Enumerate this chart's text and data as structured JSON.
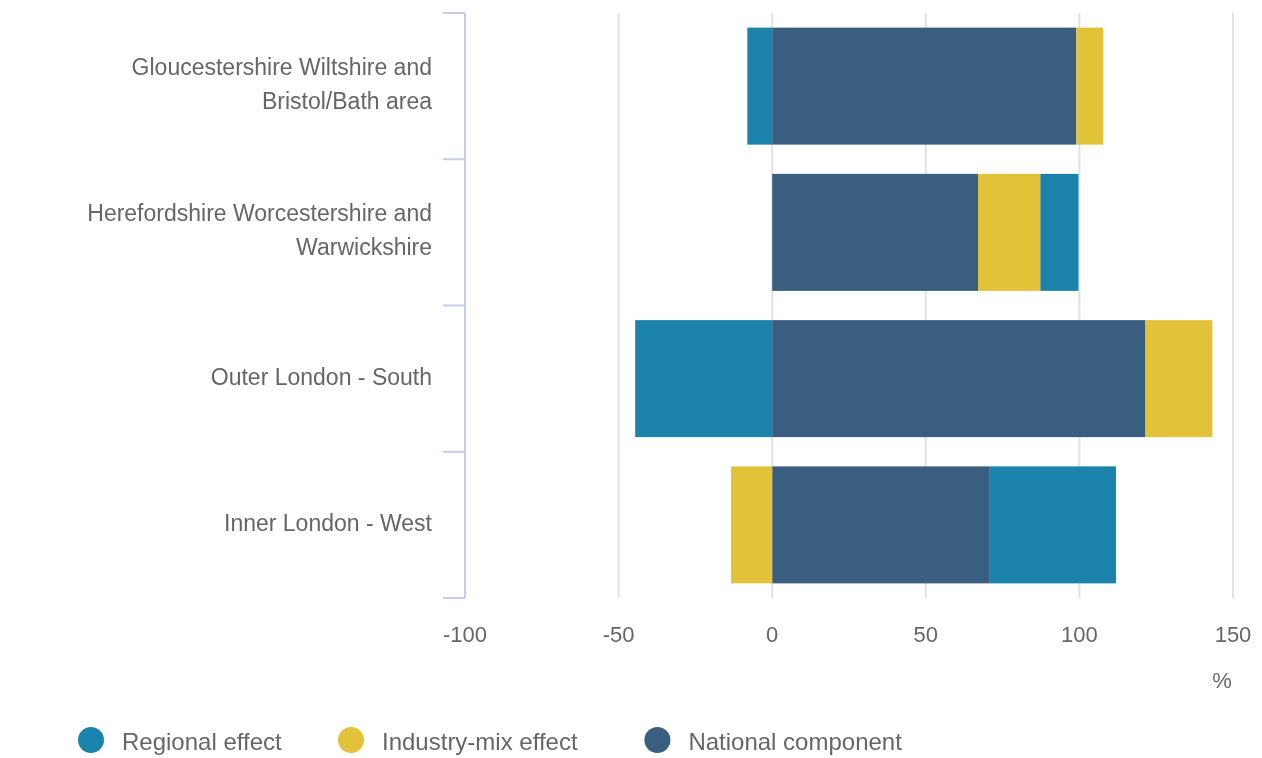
{
  "chart_data": {
    "type": "bar",
    "orientation": "horizontal",
    "stacked": true,
    "xlabel": "%",
    "categories": [
      "Gloucestershire Wiltshire and Bristol/Bath area",
      "Herefordshire Worcestershire and Warwickshire",
      "Outer London - South",
      "Inner London - West"
    ],
    "series": [
      {
        "name": "National component",
        "color": "#3a5e80",
        "values": [
          99,
          67,
          121.5,
          70.6
        ]
      },
      {
        "name": "Industry-mix effect",
        "color": "#e2c238",
        "values": [
          8.7,
          20.3,
          21.8,
          -13.4
        ]
      },
      {
        "name": "Regional effect",
        "color": "#1a82ab",
        "values": [
          -8.1,
          12.4,
          -44.6,
          41.3
        ]
      }
    ],
    "xlim": [
      -100,
      150
    ],
    "xticks": [
      -100,
      -50,
      0,
      50,
      100,
      150
    ],
    "grid": "x",
    "legend": "bottom left"
  }
}
